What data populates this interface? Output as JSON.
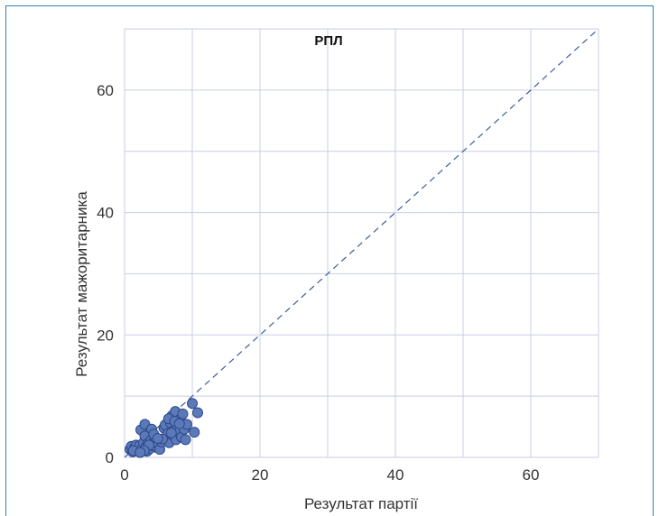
{
  "chart_data": {
    "type": "scatter",
    "title": "РПЛ",
    "xlabel": "Результат партії",
    "ylabel": "Результат мажоритарника",
    "xlim": [
      0,
      70
    ],
    "ylim": [
      0,
      70
    ],
    "xticks": [
      0,
      20,
      40,
      60
    ],
    "yticks": [
      0,
      20,
      40,
      60
    ],
    "grid": true,
    "reference_line": "y = x",
    "colors": {
      "point": "#5b79b8",
      "point_edge": "#2c4a8a",
      "line": "#3b5f9a",
      "frame": "#2d7fb8"
    },
    "series": [
      {
        "points": [
          [
            0.8,
            1.3
          ],
          [
            1.0,
            1.8
          ],
          [
            1.2,
            0.9
          ],
          [
            1.5,
            1.6
          ],
          [
            1.7,
            2.0
          ],
          [
            2.0,
            1.2
          ],
          [
            2.2,
            1.9
          ],
          [
            2.4,
            4.5
          ],
          [
            2.6,
            1.5
          ],
          [
            2.8,
            2.4
          ],
          [
            3.0,
            3.5
          ],
          [
            3.0,
            5.4
          ],
          [
            3.2,
            1.8
          ],
          [
            3.3,
            1.0
          ],
          [
            3.5,
            2.3
          ],
          [
            3.7,
            1.4
          ],
          [
            3.9,
            2.8
          ],
          [
            4.0,
            4.6
          ],
          [
            4.2,
            1.9
          ],
          [
            4.4,
            2.7
          ],
          [
            4.6,
            3.2
          ],
          [
            4.8,
            1.6
          ],
          [
            5.0,
            2.2
          ],
          [
            5.2,
            1.3
          ],
          [
            5.5,
            2.5
          ],
          [
            5.8,
            4.8
          ],
          [
            6.0,
            5.3
          ],
          [
            6.2,
            2.9
          ],
          [
            6.4,
            3.9
          ],
          [
            6.6,
            2.4
          ],
          [
            6.8,
            5.6
          ],
          [
            7.0,
            6.8
          ],
          [
            7.1,
            3.6
          ],
          [
            7.3,
            4.4
          ],
          [
            7.5,
            7.5
          ],
          [
            7.6,
            2.9
          ],
          [
            7.8,
            5.0
          ],
          [
            8.0,
            4.1
          ],
          [
            8.2,
            6.2
          ],
          [
            8.4,
            3.3
          ],
          [
            8.6,
            7.1
          ],
          [
            8.8,
            4.6
          ],
          [
            9.0,
            2.9
          ],
          [
            9.2,
            5.4
          ],
          [
            10.0,
            8.8
          ],
          [
            10.3,
            4.1
          ],
          [
            10.8,
            7.3
          ],
          [
            4.3,
            3.8
          ],
          [
            5.6,
            3.0
          ],
          [
            6.5,
            6.3
          ],
          [
            7.4,
            5.9
          ],
          [
            3.6,
            2.0
          ],
          [
            2.9,
            1.1
          ],
          [
            4.9,
            3.1
          ],
          [
            6.9,
            4.0
          ],
          [
            8.1,
            5.5
          ],
          [
            1.3,
            1.1
          ],
          [
            2.3,
            0.8
          ]
        ]
      }
    ]
  }
}
